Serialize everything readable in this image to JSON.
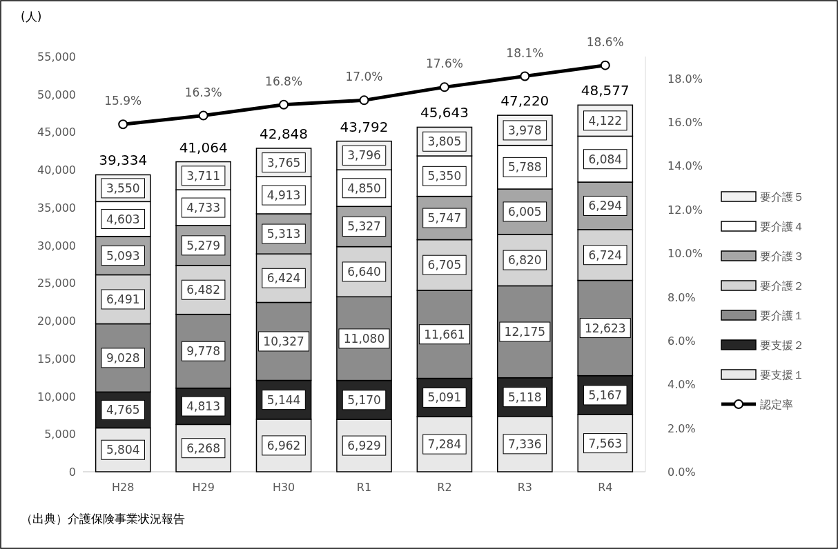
{
  "chart_data": {
    "type": "bar",
    "stacked": true,
    "ylabel": "(人)",
    "legend": "right",
    "categories": [
      "H28",
      "H29",
      "H30",
      "R1",
      "R2",
      "R3",
      "R4"
    ],
    "ylim": [
      0,
      55000
    ],
    "yticks": [
      {
        "value": 0,
        "label": "0"
      },
      {
        "value": 5000,
        "label": "5,000"
      },
      {
        "value": 10000,
        "label": "10,000"
      },
      {
        "value": 15000,
        "label": "15,000"
      },
      {
        "value": 20000,
        "label": "20,000"
      },
      {
        "value": 25000,
        "label": "25,000"
      },
      {
        "value": 30000,
        "label": "30,000"
      },
      {
        "value": 35000,
        "label": "35,000"
      },
      {
        "value": 40000,
        "label": "40,000"
      },
      {
        "value": 45000,
        "label": "45,000"
      },
      {
        "value": 50000,
        "label": "50,000"
      },
      {
        "value": 55000,
        "label": "55,000"
      }
    ],
    "y2lim": [
      0,
      19
    ],
    "y2ticks": [
      {
        "value": 0,
        "label": "0.0%"
      },
      {
        "value": 2,
        "label": "2.0%"
      },
      {
        "value": 4,
        "label": "4.0%"
      },
      {
        "value": 6,
        "label": "6.0%"
      },
      {
        "value": 8,
        "label": "8.0%"
      },
      {
        "value": 10,
        "label": "10.0%"
      },
      {
        "value": 12,
        "label": "12.0%"
      },
      {
        "value": 14,
        "label": "14.0%"
      },
      {
        "value": 16,
        "label": "16.0%"
      },
      {
        "value": 18,
        "label": "18.0%"
      }
    ],
    "series": [
      {
        "name": "要支援１",
        "color": "#e8e8e8",
        "values": [
          5804,
          6268,
          6962,
          6929,
          7284,
          7336,
          7563
        ],
        "value_labels": [
          "5,804",
          "6,268",
          "6,962",
          "6,929",
          "7,284",
          "7,336",
          "7,563"
        ]
      },
      {
        "name": "要支援２",
        "color": "#262626",
        "values": [
          4765,
          4813,
          5144,
          5170,
          5091,
          5118,
          5167
        ],
        "value_labels": [
          "4,765",
          "4,813",
          "5,144",
          "5,170",
          "5,091",
          "5,118",
          "5,167"
        ]
      },
      {
        "name": "要介護１",
        "color": "#8c8c8c",
        "values": [
          9028,
          9778,
          10327,
          11080,
          11661,
          12175,
          12623
        ],
        "value_labels": [
          "9,028",
          "9,778",
          "10,327",
          "11,080",
          "11,661",
          "12,175",
          "12,623"
        ]
      },
      {
        "name": "要介護２",
        "color": "#d4d4d4",
        "values": [
          6491,
          6482,
          6424,
          6640,
          6705,
          6820,
          6724
        ],
        "value_labels": [
          "6,491",
          "6,482",
          "6,424",
          "6,640",
          "6,705",
          "6,820",
          "6,724"
        ]
      },
      {
        "name": "要介護３",
        "color": "#a6a6a6",
        "values": [
          5093,
          5279,
          5313,
          5327,
          5747,
          6005,
          6294
        ],
        "value_labels": [
          "5,093",
          "5,279",
          "5,313",
          "5,327",
          "5,747",
          "6,005",
          "6,294"
        ]
      },
      {
        "name": "要介護４",
        "color": "#ffffff",
        "values": [
          4603,
          4733,
          4913,
          4850,
          5350,
          5788,
          6084
        ],
        "value_labels": [
          "4,603",
          "4,733",
          "4,913",
          "4,850",
          "5,350",
          "5,788",
          "6,084"
        ]
      },
      {
        "name": "要介護５",
        "color": "#f2f2f2",
        "values": [
          3550,
          3711,
          3765,
          3796,
          3805,
          3978,
          4122
        ],
        "value_labels": [
          "3,550",
          "3,711",
          "3,765",
          "3,796",
          "3,805",
          "3,978",
          "4,122"
        ]
      },
      {
        "name": "認定率",
        "type": "line",
        "axis": "y2",
        "marker": "circle",
        "color": "#000000",
        "values": [
          15.9,
          16.3,
          16.8,
          17.0,
          17.6,
          18.1,
          18.6
        ],
        "value_labels": [
          "15.9%",
          "16.3%",
          "16.8%",
          "17.0%",
          "17.6%",
          "18.1%",
          "18.6%"
        ]
      }
    ],
    "totals": [
      "39,334",
      "41,064",
      "42,848",
      "43,792",
      "45,643",
      "47,220",
      "48,577"
    ],
    "annotations": [
      "（出典）介護保険事業状況報告"
    ]
  }
}
